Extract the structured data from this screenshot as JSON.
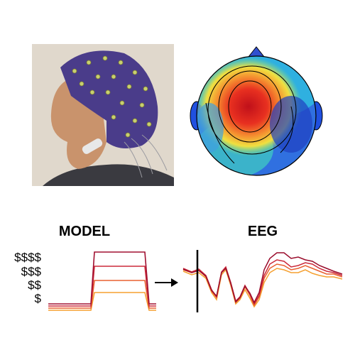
{
  "labels": {
    "model": "MODEL",
    "eeg": "EEG"
  },
  "levels": [
    "$$$$",
    "$$$",
    "$$",
    "$"
  ]
}
